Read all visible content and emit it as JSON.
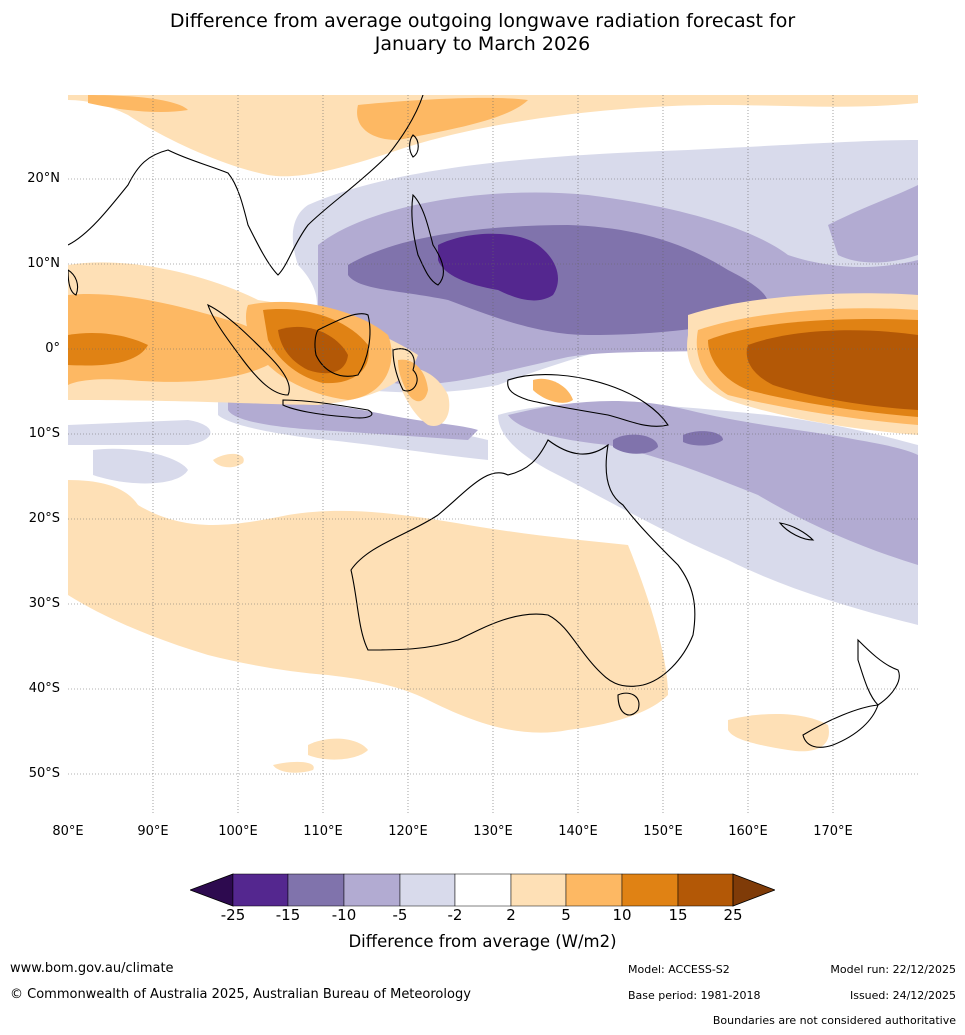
{
  "title": {
    "line1": "Difference from average outgoing longwave radiation forecast for",
    "line2": "January to March 2026"
  },
  "map": {
    "lat_labels": [
      "20°N",
      "10°N",
      "0°",
      "10°S",
      "20°S",
      "30°S",
      "40°S",
      "50°S"
    ],
    "lon_labels": [
      "80°E",
      "90°E",
      "100°E",
      "110°E",
      "120°E",
      "130°E",
      "140°E",
      "150°E",
      "160°E",
      "170°E"
    ],
    "extent": {
      "lon_min": 80,
      "lon_max": 180,
      "lat_min": -55,
      "lat_max": 30
    }
  },
  "colorbar": {
    "tick_labels": [
      "-25",
      "-15",
      "-10",
      "-5",
      "-2",
      "2",
      "5",
      "10",
      "15",
      "25"
    ],
    "colors": [
      "#2d0a4f",
      "#54278f",
      "#8073ac",
      "#b2abd2",
      "#d8daeb",
      "#ffffff",
      "#fee0b6",
      "#fdb863",
      "#e08214",
      "#b35806",
      "#7f3b08"
    ],
    "title": "Difference from average (W/m2)"
  },
  "footer": {
    "website": "www.bom.gov.au/climate",
    "copyright": "© Commonwealth of Australia 2025, Australian Bureau of Meteorology",
    "model": "Model: ACCESS-S2",
    "base_period": "Base period: 1981-2018",
    "model_run": "Model run: 22/12/2025",
    "issued": "Issued: 24/12/2025",
    "disclaimer": "Boundaries are not considered authoritative"
  }
}
